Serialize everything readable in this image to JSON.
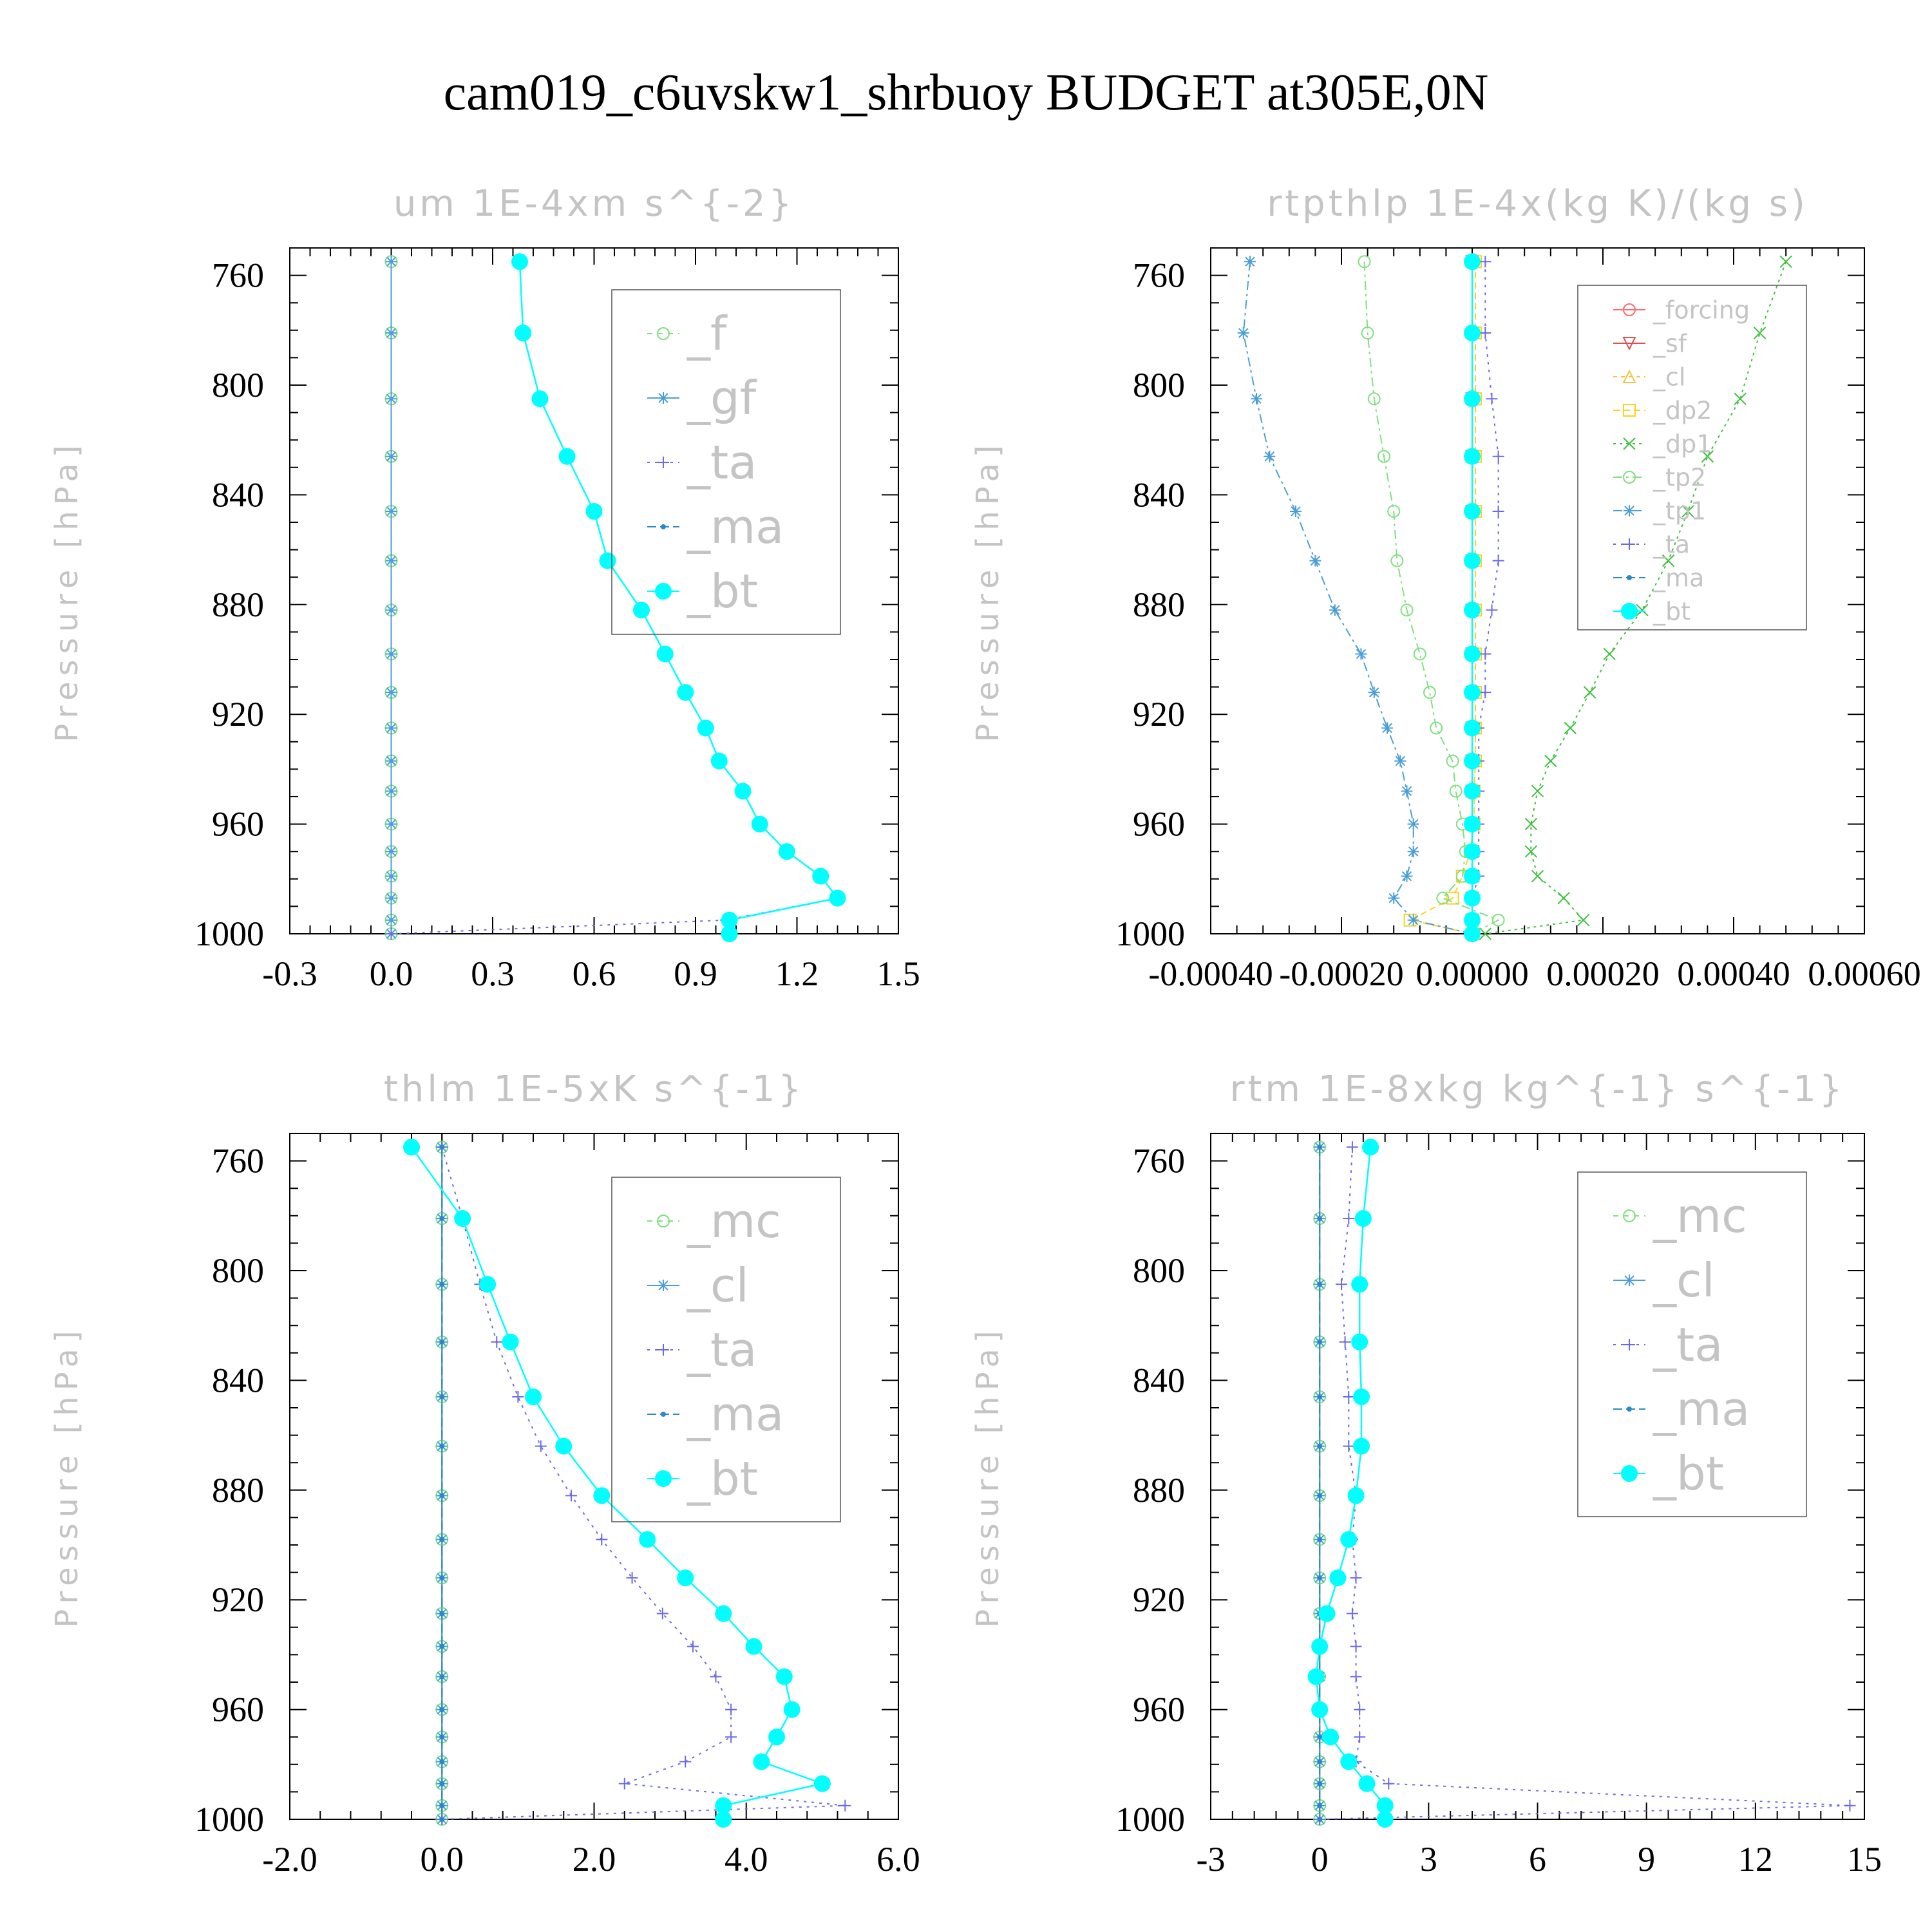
{
  "title": "cam019_c6uvskw1_shrbuoy  BUDGET at305E,0N",
  "colors": {
    "f": "#7fe07f",
    "gf": "#4a9fd8",
    "ta": "#6a6ae8",
    "ma": "#2a8ac8",
    "bt": "#00ffff",
    "forcing": "#ff6a6a",
    "sf": "#e05050",
    "cl": "#ffc040",
    "dp2": "#ffd020",
    "dp1": "#40c040",
    "tp2": "#80e080",
    "tp1": "#4a9fd8",
    "mc": "#7fe07f"
  },
  "chart_data": [
    {
      "type": "line",
      "title": "um   1E-4xm s^{-2}",
      "ylabel": "Pressure [hPa]",
      "xlim": [
        -0.3,
        1.5
      ],
      "ylim": [
        750,
        1000
      ],
      "y_inverted": true,
      "xticks": [
        "-0.3",
        "0.0",
        "0.3",
        "0.6",
        "0.9",
        "1.2",
        "1.5"
      ],
      "yticks": [
        "760",
        "800",
        "840",
        "880",
        "920",
        "960",
        "1000"
      ],
      "pressure": [
        755,
        781,
        805,
        826,
        846,
        864,
        882,
        898,
        912,
        925,
        937,
        948,
        960,
        970,
        979,
        987,
        995,
        1000
      ],
      "legend_size": "large",
      "series": [
        {
          "name": "_f",
          "color_key": "f",
          "dash": "8,8",
          "marker": "circle-open",
          "values": [
            0,
            0,
            0,
            0,
            0,
            0,
            0,
            0,
            0,
            0,
            0,
            0,
            0,
            0,
            0,
            0,
            0,
            0
          ]
        },
        {
          "name": "_gf",
          "color_key": "gf",
          "dash": "none",
          "marker": "star",
          "values": [
            0,
            0,
            0,
            0,
            0,
            0,
            0,
            0,
            0,
            0,
            0,
            0,
            0,
            0,
            0,
            0,
            0,
            0
          ]
        },
        {
          "name": "_ta",
          "color_key": "ta",
          "dash": "4,8",
          "marker": "plus",
          "values": [
            0.38,
            0.39,
            0.44,
            0.52,
            0.6,
            0.64,
            0.74,
            0.81,
            0.87,
            0.93,
            0.97,
            1.04,
            1.09,
            1.17,
            1.27,
            1.32,
            0.99,
            0.0
          ]
        },
        {
          "name": "_ma",
          "color_key": "ma",
          "dash": "14,6",
          "marker": "dot",
          "values": [
            0.38,
            0.39,
            0.44,
            0.52,
            0.6,
            0.64,
            0.74,
            0.81,
            0.87,
            0.93,
            0.97,
            1.04,
            1.09,
            1.17,
            1.27,
            1.32,
            1.0,
            1.0
          ]
        },
        {
          "name": "_bt",
          "color_key": "bt",
          "dash": "none",
          "marker": "dot-filled",
          "values": [
            0.38,
            0.39,
            0.44,
            0.52,
            0.6,
            0.64,
            0.74,
            0.81,
            0.87,
            0.93,
            0.97,
            1.04,
            1.09,
            1.17,
            1.27,
            1.32,
            1.0,
            1.0
          ]
        }
      ]
    },
    {
      "type": "line",
      "title": "rtpthlp   1E-4x(kg K)/(kg s)",
      "ylabel": "Pressure [hPa]",
      "xlim": [
        -0.0004,
        0.0006
      ],
      "ylim": [
        750,
        1000
      ],
      "y_inverted": true,
      "xticks": [
        "-0.00040",
        "-0.00020",
        "0.00000",
        "0.00020",
        "0.00040",
        "0.00060"
      ],
      "yticks": [
        "760",
        "800",
        "840",
        "880",
        "920",
        "960",
        "1000"
      ],
      "pressure": [
        755,
        781,
        805,
        826,
        846,
        864,
        882,
        898,
        912,
        925,
        937,
        948,
        960,
        970,
        979,
        987,
        995,
        1000
      ],
      "legend_size": "small",
      "series": [
        {
          "name": "_forcing",
          "color_key": "forcing",
          "dash": "none",
          "marker": "circle-open",
          "values": [
            0,
            0,
            0,
            0,
            0,
            0,
            0,
            0,
            0,
            0,
            0,
            0,
            0,
            0,
            0,
            0,
            0,
            0
          ]
        },
        {
          "name": "_sf",
          "color_key": "sf",
          "dash": "none",
          "marker": "tri-down",
          "values": [
            0,
            0,
            0,
            0,
            0,
            0,
            0,
            0,
            0,
            0,
            0,
            0,
            0,
            0,
            0,
            0,
            0,
            0
          ]
        },
        {
          "name": "_cl",
          "color_key": "cl",
          "dash": "6,6",
          "marker": "tri-up",
          "values": [
            0,
            0,
            0,
            0,
            0,
            0,
            0,
            0,
            0,
            0,
            0,
            0,
            0,
            0,
            0,
            0,
            0,
            0
          ]
        },
        {
          "name": "_dp2",
          "color_key": "dp2",
          "dash": "10,6",
          "marker": "square-open",
          "values": [
            5e-06,
            5e-06,
            5e-06,
            5e-06,
            5e-06,
            5e-06,
            5e-06,
            5e-06,
            5e-06,
            5e-06,
            5e-06,
            3e-06,
            3e-06,
            -3e-06,
            -1.5e-05,
            -3e-05,
            -9.5e-05,
            -0.0
          ]
        },
        {
          "name": "_dp1",
          "color_key": "dp1",
          "dash": "4,6",
          "marker": "x",
          "values": [
            0.00048,
            0.00044,
            0.00041,
            0.00036,
            0.00033,
            0.0003,
            0.00026,
            0.00021,
            0.00018,
            0.00015,
            0.00012,
            0.0001,
            9e-05,
            9e-05,
            0.0001,
            0.00014,
            0.00017,
            2e-05
          ]
        },
        {
          "name": "_tp2",
          "color_key": "tp2",
          "dash": "14,6,4,6",
          "marker": "circle-open",
          "values": [
            -0.000165,
            -0.00016,
            -0.00015,
            -0.000135,
            -0.00012,
            -0.000115,
            -0.0001,
            -8e-05,
            -6.5e-05,
            -5.5e-05,
            -3e-05,
            -2.5e-05,
            -1.5e-05,
            -1e-05,
            -1.5e-05,
            -4.5e-05,
            4e-05,
            0.0
          ]
        },
        {
          "name": "_tp1",
          "color_key": "tp1",
          "dash": "14,6,4,6",
          "marker": "star",
          "values": [
            -0.00034,
            -0.00035,
            -0.00033,
            -0.00031,
            -0.00027,
            -0.00024,
            -0.00021,
            -0.00017,
            -0.00015,
            -0.00013,
            -0.00011,
            -0.0001,
            -9e-05,
            -9e-05,
            -0.0001,
            -0.00012,
            -9e-05,
            0.0
          ]
        },
        {
          "name": "_ta",
          "color_key": "ta",
          "dash": "4,8",
          "marker": "plus",
          "values": [
            2e-05,
            2e-05,
            3e-05,
            4e-05,
            4e-05,
            4e-05,
            3e-05,
            2e-05,
            2e-05,
            1e-05,
            1e-05,
            1e-05,
            1e-05,
            1e-05,
            1e-05,
            0.0,
            0.0,
            0.0
          ]
        },
        {
          "name": "_ma",
          "color_key": "ma",
          "dash": "14,6",
          "marker": "dot",
          "values": [
            0,
            0,
            0,
            0,
            0,
            0,
            0,
            0,
            0,
            0,
            0,
            0,
            0,
            0,
            0,
            0,
            0,
            0
          ]
        },
        {
          "name": "_bt",
          "color_key": "bt",
          "dash": "none",
          "marker": "dot-filled",
          "values": [
            0,
            0,
            0,
            0,
            0,
            0,
            0,
            0,
            0,
            0,
            0,
            0,
            0,
            0,
            0,
            0,
            0,
            0
          ]
        }
      ]
    },
    {
      "type": "line",
      "title": "thlm   1E-5xK s^{-1}",
      "ylabel": "Pressure [hPa]",
      "xlim": [
        -2.0,
        6.0
      ],
      "ylim": [
        750,
        1000
      ],
      "y_inverted": true,
      "xticks": [
        "-2.0",
        "0.0",
        "2.0",
        "4.0",
        "6.0"
      ],
      "yticks": [
        "760",
        "800",
        "840",
        "880",
        "920",
        "960",
        "1000"
      ],
      "pressure": [
        755,
        781,
        805,
        826,
        846,
        864,
        882,
        898,
        912,
        925,
        937,
        948,
        960,
        970,
        979,
        987,
        995,
        1000
      ],
      "legend_size": "large",
      "series": [
        {
          "name": "_mc",
          "color_key": "mc",
          "dash": "8,8",
          "marker": "circle-open",
          "values": [
            0,
            0,
            0,
            0,
            0,
            0,
            0,
            0,
            0,
            0,
            0,
            0,
            0,
            0,
            0,
            0,
            0,
            0
          ]
        },
        {
          "name": "_cl",
          "color_key": "gf",
          "dash": "none",
          "marker": "star",
          "values": [
            0,
            0,
            0,
            0,
            0,
            0,
            0,
            0,
            0,
            0,
            0,
            0,
            0,
            0,
            0,
            0,
            0,
            0
          ]
        },
        {
          "name": "_ta",
          "color_key": "ta",
          "dash": "4,8",
          "marker": "plus",
          "values": [
            0,
            0.27,
            0.5,
            0.72,
            1.0,
            1.3,
            1.7,
            2.1,
            2.5,
            2.9,
            3.3,
            3.6,
            3.8,
            3.8,
            3.2,
            2.4,
            5.3,
            0.0
          ]
        },
        {
          "name": "_ma",
          "color_key": "ma",
          "dash": "14,6",
          "marker": "dot",
          "values": [
            0,
            0,
            0,
            0,
            0,
            0,
            0,
            0,
            0,
            0,
            0,
            0,
            0,
            0,
            0,
            0,
            0,
            0
          ]
        },
        {
          "name": "_bt",
          "color_key": "bt",
          "dash": "none",
          "marker": "dot-filled",
          "values": [
            -0.4,
            0.27,
            0.6,
            0.9,
            1.2,
            1.6,
            2.1,
            2.7,
            3.2,
            3.7,
            4.1,
            4.5,
            4.6,
            4.4,
            4.2,
            5.0,
            3.7,
            3.7
          ]
        }
      ]
    },
    {
      "type": "line",
      "title": "rtm   1E-8xkg kg^{-1} s^{-1}",
      "ylabel": "Pressure [hPa]",
      "xlim": [
        -3,
        15
      ],
      "ylim": [
        750,
        1000
      ],
      "y_inverted": true,
      "xticks": [
        "-3",
        "0",
        "3",
        "6",
        "9",
        "12",
        "15"
      ],
      "yticks": [
        "760",
        "800",
        "840",
        "880",
        "920",
        "960",
        "1000"
      ],
      "pressure": [
        755,
        781,
        805,
        826,
        846,
        864,
        882,
        898,
        912,
        925,
        937,
        948,
        960,
        970,
        979,
        987,
        995,
        1000
      ],
      "legend_size": "large",
      "series": [
        {
          "name": "_mc",
          "color_key": "mc",
          "dash": "8,8",
          "marker": "circle-open",
          "values": [
            0,
            0,
            0,
            0,
            0,
            0,
            0,
            0,
            0,
            0,
            0,
            0,
            0,
            0,
            0,
            0,
            0,
            0
          ]
        },
        {
          "name": "_cl",
          "color_key": "gf",
          "dash": "none",
          "marker": "star",
          "values": [
            0,
            0,
            0,
            0,
            0,
            0,
            0,
            0,
            0,
            0,
            0,
            0,
            0,
            0,
            0,
            0,
            0,
            0
          ]
        },
        {
          "name": "_ta",
          "color_key": "ta",
          "dash": "4,8",
          "marker": "plus",
          "values": [
            0.9,
            0.8,
            0.6,
            0.7,
            0.8,
            0.8,
            1.0,
            0.9,
            1.0,
            0.9,
            1.0,
            1.0,
            1.1,
            1.1,
            1.0,
            1.9,
            14.6,
            0.0
          ]
        },
        {
          "name": "_ma",
          "color_key": "ma",
          "dash": "14,6",
          "marker": "dot",
          "values": [
            0,
            0,
            0,
            0,
            0,
            0,
            0,
            0,
            0,
            0,
            0,
            0,
            0,
            0,
            0,
            0,
            0,
            0
          ]
        },
        {
          "name": "_bt",
          "color_key": "bt",
          "dash": "none",
          "marker": "dot-filled",
          "values": [
            1.4,
            1.2,
            1.1,
            1.1,
            1.15,
            1.15,
            1.0,
            0.8,
            0.5,
            0.2,
            0.0,
            -0.1,
            0.0,
            0.3,
            0.8,
            1.3,
            1.8,
            1.8
          ]
        }
      ]
    }
  ]
}
